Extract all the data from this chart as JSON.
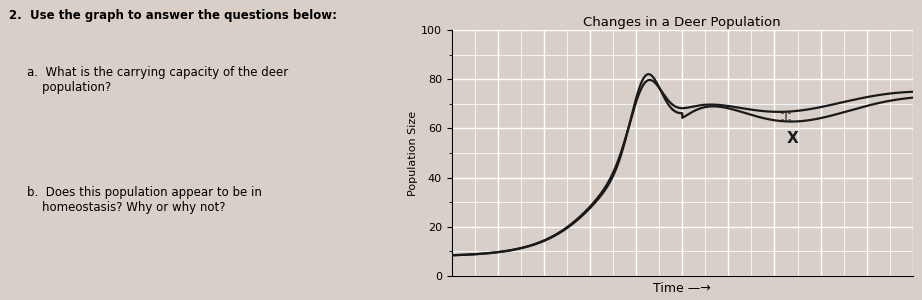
{
  "title": "Changes in a Deer Population",
  "xlabel": "Time —→",
  "ylabel": "Population Size",
  "ylim": [
    0,
    100
  ],
  "yticks": [
    0,
    20,
    40,
    60,
    80,
    100
  ],
  "page_bg": "#d8d0c8",
  "chart_bg": "#d8d0c8",
  "line_color": "#1a1a1a",
  "grid_color": "#ffffff",
  "annotation_x_label": "X",
  "text_q2": "2.  Use the graph to answer the questions below:",
  "text_a": "a.  What is the carrying capacity of the deer\n    population?",
  "text_b": "b.  Does this population appear to be in\n    homeostasis? Why or why not?"
}
